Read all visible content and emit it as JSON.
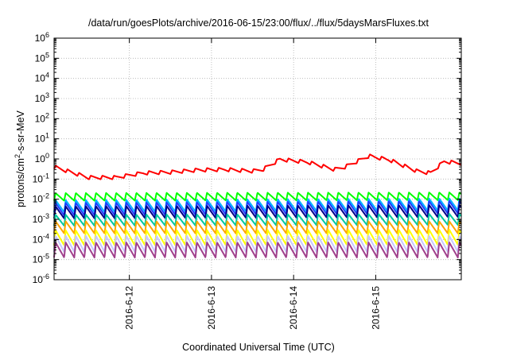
{
  "chart_data": {
    "type": "line",
    "title": "/data/run/goesPlots/archive/2016-06-15/23:00/flux/../flux/5daysMarsFluxes.txt",
    "xlabel": "Coordinated Universal Time (UTC)",
    "ylabel_parts": {
      "base": "protons/cm",
      "sup": "2",
      "rest": "-s-sr-MeV"
    },
    "y_scale": "log",
    "ylim": [
      1e-06,
      1000000.0
    ],
    "y_ticks": [
      {
        "base": "10",
        "exp": "-6",
        "value": 1e-06
      },
      {
        "base": "10",
        "exp": "-5",
        "value": 1e-05
      },
      {
        "base": "10",
        "exp": "-4",
        "value": 0.0001
      },
      {
        "base": "10",
        "exp": "-3",
        "value": 0.001
      },
      {
        "base": "10",
        "exp": "-2",
        "value": 0.01
      },
      {
        "base": "10",
        "exp": "-1",
        "value": 0.1
      },
      {
        "base": "10",
        "exp": "0",
        "value": 1
      },
      {
        "base": "10",
        "exp": "1",
        "value": 10
      },
      {
        "base": "10",
        "exp": "2",
        "value": 100
      },
      {
        "base": "10",
        "exp": "3",
        "value": 1000
      },
      {
        "base": "10",
        "exp": "4",
        "value": 10000
      },
      {
        "base": "10",
        "exp": "5",
        "value": 100000
      },
      {
        "base": "10",
        "exp": "6",
        "value": 1000000
      }
    ],
    "x_range": [
      "2016-06-11T02:00",
      "2016-06-16T01:00"
    ],
    "x_ticks": [
      {
        "label": "2016-6-12",
        "value": "2016-06-12T00:00"
      },
      {
        "label": "2016-6-13",
        "value": "2016-06-13T00:00"
      },
      {
        "label": "2016-6-14",
        "value": "2016-06-14T00:00"
      },
      {
        "label": "2016-6-15",
        "value": "2016-06-15T00:00"
      }
    ],
    "grid": true,
    "legend": "none",
    "series": [
      {
        "color": "#ff0000",
        "base": [
          [
            "2016-06-11T02:00",
            0.4
          ],
          [
            "2016-06-11T12:00",
            0.12
          ],
          [
            "2016-06-11T20:00",
            0.12
          ],
          [
            "2016-06-12T04:00",
            0.2
          ],
          [
            "2016-06-12T12:00",
            0.22
          ],
          [
            "2016-06-12T20:00",
            0.28
          ],
          [
            "2016-06-13T04:00",
            0.3
          ],
          [
            "2016-06-13T12:00",
            0.25
          ],
          [
            "2016-06-13T15:00",
            0.3
          ],
          [
            "2016-06-13T20:00",
            0.95
          ],
          [
            "2016-06-14T04:00",
            0.7
          ],
          [
            "2016-06-14T12:00",
            0.3
          ],
          [
            "2016-06-14T15:00",
            0.4
          ],
          [
            "2016-06-14T22:00",
            1.4
          ],
          [
            "2016-06-15T04:00",
            0.9
          ],
          [
            "2016-06-15T12:00",
            0.25
          ],
          [
            "2016-06-15T16:00",
            0.2
          ],
          [
            "2016-06-15T20:00",
            0.75
          ],
          [
            "2016-06-16T01:00",
            0.6
          ]
        ],
        "sawtooth": {
          "period_hours": 3.4,
          "amplitude_decades": 0.18
        }
      },
      {
        "color": "#00ff00",
        "base": [
          [
            "2016-06-11T02:00",
            0.013
          ],
          [
            "2016-06-16T01:00",
            0.014
          ]
        ],
        "sawtooth": {
          "period_hours": 2.95,
          "amplitude_decades": 0.38
        }
      },
      {
        "color": "#00b4ff",
        "base": [
          [
            "2016-06-11T02:00",
            0.0045
          ],
          [
            "2016-06-16T01:00",
            0.0055
          ]
        ],
        "sawtooth": {
          "period_hours": 2.95,
          "amplitude_decades": 0.6
        }
      },
      {
        "color": "#1e3cff",
        "base": [
          [
            "2016-06-11T02:00",
            0.0032
          ],
          [
            "2016-06-16T01:00",
            0.004
          ]
        ],
        "sawtooth": {
          "period_hours": 2.95,
          "amplitude_decades": 0.62
        }
      },
      {
        "color": "#00008b",
        "base": [
          [
            "2016-06-11T02:00",
            0.0022
          ],
          [
            "2016-06-16T01:00",
            0.0026
          ]
        ],
        "sawtooth": {
          "period_hours": 2.95,
          "amplitude_decades": 0.6
        }
      },
      {
        "color": "#00c8a0",
        "base": [
          [
            "2016-06-11T02:00",
            0.0009
          ],
          [
            "2016-06-16T01:00",
            0.001
          ]
        ],
        "sawtooth": {
          "period_hours": 2.95,
          "amplitude_decades": 0.55
        }
      },
      {
        "color": "#ffa500",
        "base": [
          [
            "2016-06-11T02:00",
            0.0004
          ],
          [
            "2016-06-16T01:00",
            0.0004
          ]
        ],
        "sawtooth": {
          "period_hours": 2.95,
          "amplitude_decades": 0.6
        }
      },
      {
        "color": "#ffff00",
        "base": [
          [
            "2016-06-11T02:00",
            0.00012
          ],
          [
            "2016-06-16T01:00",
            0.00013
          ]
        ],
        "sawtooth": {
          "period_hours": 2.95,
          "amplitude_decades": 0.75
        }
      },
      {
        "color": "#c8c8ff",
        "base": [
          [
            "2016-06-11T02:00",
            6e-05
          ],
          [
            "2016-06-16T01:00",
            6e-05
          ]
        ],
        "sawtooth": {
          "period_hours": 2.95,
          "amplitude_decades": 0.8
        }
      },
      {
        "color": "#a0408c",
        "base": [
          [
            "2016-06-11T02:00",
            3e-05
          ],
          [
            "2016-06-16T01:00",
            3e-05
          ]
        ],
        "sawtooth": {
          "period_hours": 2.95,
          "amplitude_decades": 0.75
        }
      }
    ]
  }
}
